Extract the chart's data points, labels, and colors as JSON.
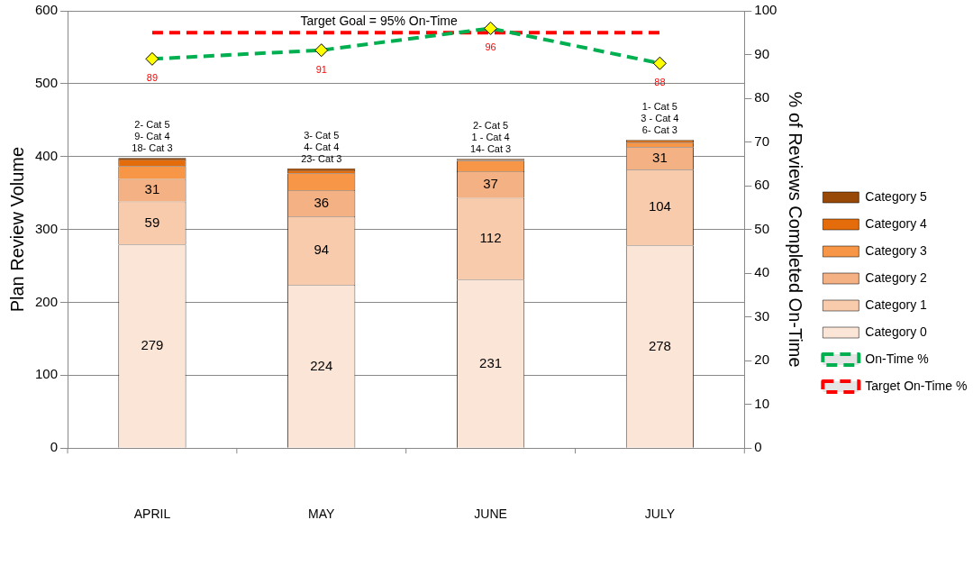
{
  "chart_data": {
    "type": "bar",
    "stacked": true,
    "categories": [
      "APRIL",
      "MAY",
      "JUNE",
      "JULY"
    ],
    "ylabel": "Plan Review Volume",
    "y2label": "% of Reviews Completed On-Time",
    "ylim": [
      0,
      600
    ],
    "yticks": [
      0,
      100,
      200,
      300,
      400,
      500,
      600
    ],
    "y2lim": [
      0,
      100
    ],
    "y2ticks": [
      0,
      10,
      20,
      30,
      40,
      50,
      60,
      70,
      80,
      90,
      100
    ],
    "grid": "y",
    "legend": "right",
    "series": [
      {
        "name": "Category 0",
        "color": "#fbe5d6",
        "values": [
          279,
          224,
          231,
          278
        ],
        "value_labels": [
          "279",
          "224",
          "231",
          "278"
        ]
      },
      {
        "name": "Category 1",
        "color": "#f8cbad",
        "values": [
          59,
          94,
          112,
          104
        ],
        "value_labels": [
          "59",
          "94",
          "112",
          "104"
        ]
      },
      {
        "name": "Category 2",
        "color": "#f4b183",
        "values": [
          31,
          36,
          37,
          31
        ],
        "value_labels": [
          "31",
          "36",
          "37",
          "31"
        ]
      },
      {
        "name": "Category 3",
        "color": "#f79646",
        "values": [
          18,
          23,
          14,
          6
        ],
        "value_labels": [
          "18- Cat 3",
          "23- Cat 3",
          "14- Cat 3",
          "6- Cat 3"
        ]
      },
      {
        "name": "Category 4",
        "color": "#e46c0a",
        "values": [
          9,
          4,
          1,
          3
        ],
        "value_labels": [
          "9- Cat 4",
          "4- Cat 4",
          "1 - Cat 4",
          "3 - Cat 4"
        ]
      },
      {
        "name": "Category 5",
        "color": "#984807",
        "values": [
          2,
          3,
          2,
          1
        ],
        "value_labels": [
          "2- Cat 5",
          "3- Cat 5",
          "2- Cat 5",
          "1- Cat 5"
        ]
      },
      {
        "name": "On-Time %",
        "type": "line",
        "axis": "y2",
        "color": "#00b050",
        "marker": "diamond",
        "line_style": "dashed",
        "values": [
          89,
          91,
          96,
          88
        ],
        "value_labels": [
          "89",
          "91",
          "96",
          "88"
        ]
      },
      {
        "name": "Target On-Time %",
        "type": "line",
        "axis": "y2",
        "color": "#ff0000",
        "marker": "none",
        "line_style": "dashed",
        "values": [
          95,
          95,
          95,
          95
        ]
      }
    ],
    "annotations": [
      "Target Goal = 95% On-Time"
    ]
  }
}
